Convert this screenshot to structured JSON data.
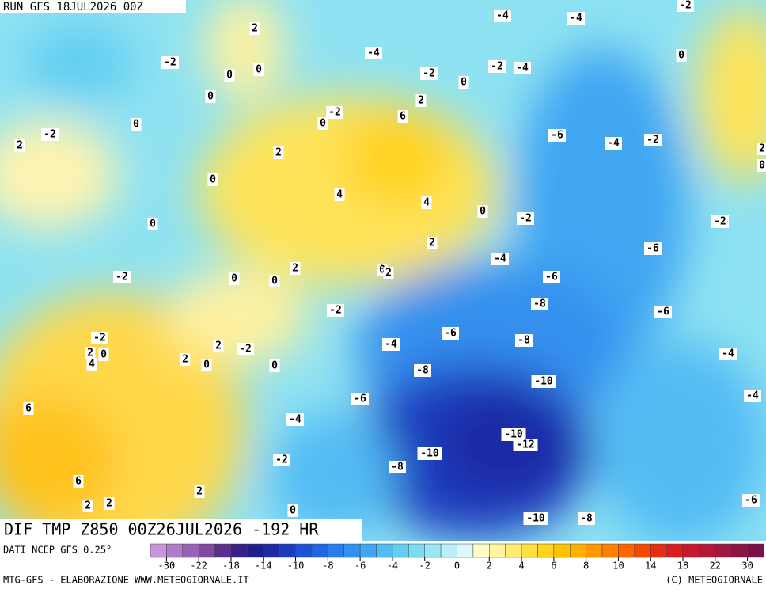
{
  "header": {
    "run": "RUN GFS 18JUL2026 00Z",
    "field": "DIF TMP Z850 00Z26JUL2026 -192 HR"
  },
  "contour_labels": [
    "-4",
    "-4",
    "-2",
    "2",
    "-4",
    "-2",
    "0",
    "0",
    "0",
    "-2",
    "-4",
    "-2",
    "0",
    "0",
    "2",
    "-2",
    "6",
    "0",
    "0",
    "-2",
    "-6",
    "-4",
    "-2",
    "2",
    "2",
    "2",
    "0",
    "0",
    "4",
    "4",
    "0",
    "-2",
    "-2",
    "0",
    "2",
    "-6",
    "-4",
    "2",
    "0",
    "2",
    "-2",
    "0",
    "0",
    "-6",
    "-8",
    "-2",
    "-6",
    "-2",
    "-6",
    "-8",
    "-4",
    "2",
    "-2",
    "2",
    "0",
    "-4",
    "4",
    "2",
    "0",
    "0",
    "-8",
    "-10",
    "-6",
    "-4",
    "6",
    "-4",
    "-10",
    "-12",
    "-10",
    "-2",
    "-8",
    "6",
    "2",
    "2",
    "2",
    "-6",
    "0",
    "-10",
    "-8"
  ],
  "colorbar": {
    "source": "DATI NCEP GFS 0.25°",
    "colors": [
      "#c896d8",
      "#b07cc8",
      "#9a62b6",
      "#804aa2",
      "#5c2e8e",
      "#3a1f86",
      "#1e1e8c",
      "#1c2aa6",
      "#1c3cc0",
      "#1e52d6",
      "#2066e2",
      "#2a7ce8",
      "#3490ee",
      "#40a6f2",
      "#52bcf4",
      "#62cef2",
      "#7adcf2",
      "#98e6f4",
      "#bcf0f6",
      "#dcf8f8",
      "#fffcc8",
      "#fff4a0",
      "#ffec70",
      "#ffe040",
      "#ffd41a",
      "#ffc400",
      "#ffb000",
      "#ff9800",
      "#ff8000",
      "#ff6400",
      "#f44800",
      "#e82c10",
      "#d81c20",
      "#c81830",
      "#b41838",
      "#a01840",
      "#8c1444",
      "#7a1046"
    ],
    "ticks": [
      -30,
      -22,
      -18,
      -14,
      -10,
      -8,
      -6,
      -4,
      -2,
      0,
      2,
      4,
      6,
      8,
      10,
      14,
      18,
      22,
      30
    ]
  },
  "footer": {
    "credit": "MTG-GFS - ELABORAZIONE WWW.METEOGIORNALE.IT",
    "copyright": "(C) METEOGIORNALE"
  }
}
